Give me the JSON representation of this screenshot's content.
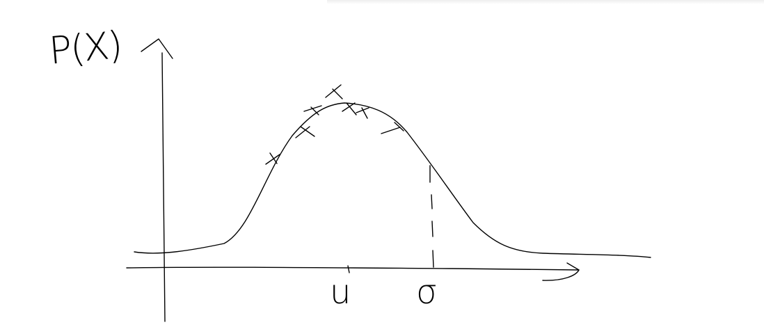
{
  "labels": {
    "y_axis": "P(X)",
    "mean": "u",
    "sigma": "σ"
  },
  "colors": {
    "ink": "#000000",
    "background": "#ffffff",
    "top_shadow": "#eeeeee"
  }
}
